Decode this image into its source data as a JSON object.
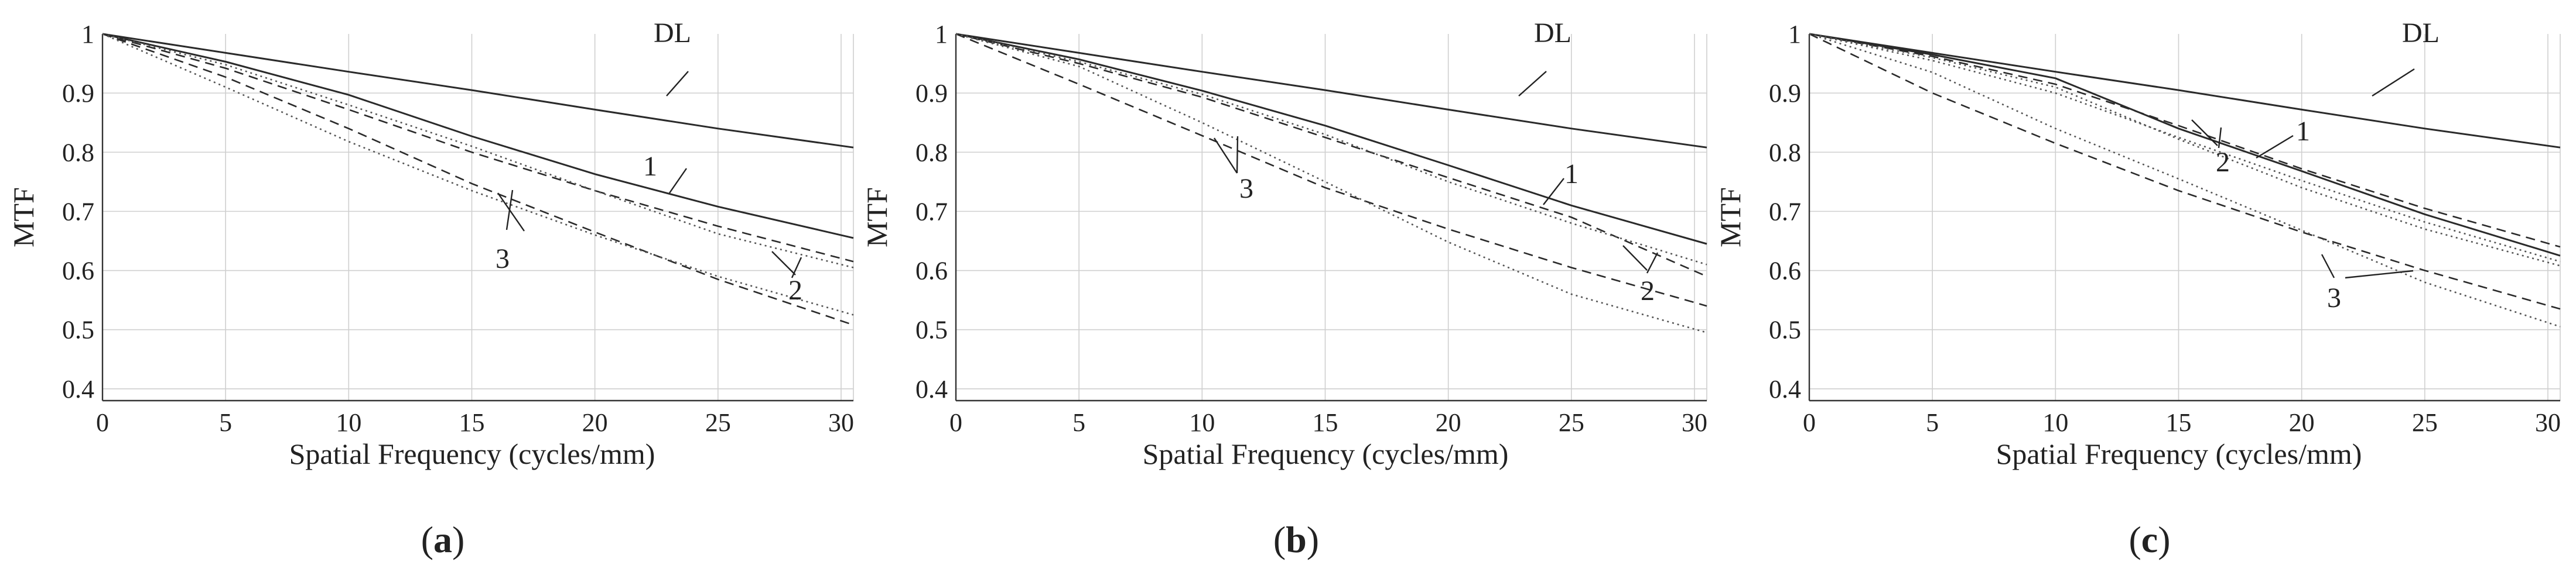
{
  "chart_data": [
    {
      "type": "line",
      "panel_label_prefix": "(",
      "panel_letter": "a",
      "panel_label_suffix": ")",
      "xlabel": "Spatial Frequency (cycles/mm)",
      "ylabel": "MTF",
      "xlim": [
        0,
        30.5
      ],
      "ylim": [
        0.38,
        1.0
      ],
      "xticks": [
        "0",
        "5",
        "10",
        "15",
        "20",
        "25",
        "30"
      ],
      "yticks": [
        "0.4",
        "0.5",
        "0.6",
        "0.7",
        "0.8",
        "0.9",
        "1"
      ],
      "grid": true,
      "series": [
        {
          "name": "DL",
          "style": "solid",
          "x": [
            0,
            5,
            10,
            15,
            20,
            25,
            30.5
          ],
          "y": [
            1.0,
            0.968,
            0.936,
            0.905,
            0.872,
            0.84,
            0.808
          ]
        },
        {
          "name": "1",
          "style": "solid",
          "x": [
            0,
            5,
            10,
            15,
            20,
            25,
            30.5
          ],
          "y": [
            1.0,
            0.953,
            0.897,
            0.827,
            0.763,
            0.708,
            0.655
          ]
        },
        {
          "name": "2-dashed",
          "style": "dashed",
          "x": [
            0,
            5,
            10,
            15,
            20,
            25,
            30.5
          ],
          "y": [
            1.0,
            0.942,
            0.872,
            0.8,
            0.735,
            0.675,
            0.615
          ]
        },
        {
          "name": "2-dotted",
          "style": "dotted",
          "x": [
            0,
            5,
            10,
            15,
            20,
            25,
            30.5
          ],
          "y": [
            1.0,
            0.948,
            0.88,
            0.81,
            0.735,
            0.662,
            0.605
          ]
        },
        {
          "name": "3-dashed",
          "style": "dashed",
          "x": [
            0,
            5,
            10,
            15,
            20,
            25,
            30.5
          ],
          "y": [
            1.0,
            0.927,
            0.84,
            0.747,
            0.665,
            0.585,
            0.508
          ]
        },
        {
          "name": "3-dotted",
          "style": "dotted",
          "x": [
            0,
            5,
            10,
            15,
            20,
            25,
            30.5
          ],
          "y": [
            1.0,
            0.91,
            0.818,
            0.735,
            0.66,
            0.59,
            0.525
          ]
        }
      ],
      "annotations": [
        {
          "text": "DL",
          "series": "DL"
        },
        {
          "text": "1",
          "series": "1"
        },
        {
          "text": "2",
          "series": "2"
        },
        {
          "text": "3",
          "series": "3"
        }
      ]
    },
    {
      "type": "line",
      "panel_label_prefix": "(",
      "panel_letter": "b",
      "panel_label_suffix": ")",
      "xlabel": "Spatial Frequency (cycles/mm)",
      "ylabel": "MTF",
      "xlim": [
        0,
        30.5
      ],
      "ylim": [
        0.38,
        1.0
      ],
      "xticks": [
        "0",
        "5",
        "10",
        "15",
        "20",
        "25",
        "30"
      ],
      "yticks": [
        "0.4",
        "0.5",
        "0.6",
        "0.7",
        "0.8",
        "0.9",
        "1"
      ],
      "grid": true,
      "series": [
        {
          "name": "DL",
          "style": "solid",
          "x": [
            0,
            5,
            10,
            15,
            20,
            25,
            30.5
          ],
          "y": [
            1.0,
            0.968,
            0.936,
            0.905,
            0.872,
            0.84,
            0.808
          ]
        },
        {
          "name": "1",
          "style": "solid",
          "x": [
            0,
            5,
            10,
            15,
            20,
            25,
            30.5
          ],
          "y": [
            1.0,
            0.957,
            0.904,
            0.845,
            0.778,
            0.71,
            0.645
          ]
        },
        {
          "name": "2-dashed",
          "style": "dashed",
          "x": [
            0,
            5,
            10,
            15,
            20,
            25,
            30.5
          ],
          "y": [
            1.0,
            0.95,
            0.893,
            0.825,
            0.757,
            0.69,
            0.59
          ]
        },
        {
          "name": "2-dotted",
          "style": "dotted",
          "x": [
            0,
            5,
            10,
            15,
            20,
            25,
            30.5
          ],
          "y": [
            1.0,
            0.953,
            0.898,
            0.83,
            0.75,
            0.68,
            0.61
          ]
        },
        {
          "name": "3-dashed",
          "style": "dashed",
          "x": [
            0,
            5,
            10,
            15,
            20,
            25,
            30.5
          ],
          "y": [
            1.0,
            0.915,
            0.828,
            0.74,
            0.67,
            0.605,
            0.54
          ]
        },
        {
          "name": "3-dotted",
          "style": "dotted",
          "x": [
            0,
            5,
            10,
            15,
            20,
            25,
            30.5
          ],
          "y": [
            1.0,
            0.945,
            0.85,
            0.75,
            0.648,
            0.56,
            0.495
          ]
        }
      ],
      "annotations": [
        {
          "text": "DL",
          "series": "DL"
        },
        {
          "text": "1",
          "series": "1"
        },
        {
          "text": "2",
          "series": "2"
        },
        {
          "text": "3",
          "series": "3"
        }
      ]
    },
    {
      "type": "line",
      "panel_label_prefix": "(",
      "panel_letter": "c",
      "panel_label_suffix": ")",
      "xlabel": "Spatial Frequency (cycles/mm)",
      "ylabel": "MTF",
      "xlim": [
        0,
        30.5
      ],
      "ylim": [
        0.38,
        1.0
      ],
      "xticks": [
        "0",
        "5",
        "10",
        "15",
        "20",
        "25",
        "30"
      ],
      "yticks": [
        "0.4",
        "0.5",
        "0.6",
        "0.7",
        "0.8",
        "0.9",
        "1"
      ],
      "grid": true,
      "series": [
        {
          "name": "DL",
          "style": "solid",
          "x": [
            0,
            5,
            10,
            15,
            20,
            25,
            30.5
          ],
          "y": [
            1.0,
            0.968,
            0.936,
            0.905,
            0.872,
            0.84,
            0.808
          ]
        },
        {
          "name": "1",
          "style": "solid",
          "x": [
            0,
            5,
            10,
            15,
            20,
            25,
            30.5
          ],
          "y": [
            1.0,
            0.965,
            0.925,
            0.84,
            0.768,
            0.695,
            0.625
          ]
        },
        {
          "name": "1-dashed",
          "style": "dashed",
          "x": [
            0,
            5,
            10,
            15,
            20,
            25,
            30.5
          ],
          "y": [
            1.0,
            0.962,
            0.915,
            0.845,
            0.772,
            0.705,
            0.64
          ]
        },
        {
          "name": "2-dotted",
          "style": "dotted",
          "x": [
            0,
            5,
            10,
            15,
            20,
            25,
            30.5
          ],
          "y": [
            1.0,
            0.955,
            0.9,
            0.825,
            0.752,
            0.682,
            0.615
          ]
        },
        {
          "name": "2-faint",
          "style": "dotted",
          "x": [
            0,
            5,
            10,
            15,
            20,
            25,
            30.5
          ],
          "y": [
            1.0,
            0.96,
            0.91,
            0.822,
            0.74,
            0.67,
            0.608
          ]
        },
        {
          "name": "3-dashed",
          "style": "dashed",
          "x": [
            0,
            5,
            10,
            15,
            20,
            25,
            30.5
          ],
          "y": [
            1.0,
            0.9,
            0.815,
            0.735,
            0.665,
            0.6,
            0.535
          ]
        },
        {
          "name": "3-dotted",
          "style": "dotted",
          "x": [
            0,
            5,
            10,
            15,
            20,
            25,
            30.5
          ],
          "y": [
            1.0,
            0.935,
            0.84,
            0.755,
            0.668,
            0.58,
            0.505
          ]
        }
      ],
      "annotations": [
        {
          "text": "DL",
          "series": "DL"
        },
        {
          "text": "1",
          "series": "1"
        },
        {
          "text": "2",
          "series": "2"
        },
        {
          "text": "3",
          "series": "3"
        }
      ]
    }
  ]
}
